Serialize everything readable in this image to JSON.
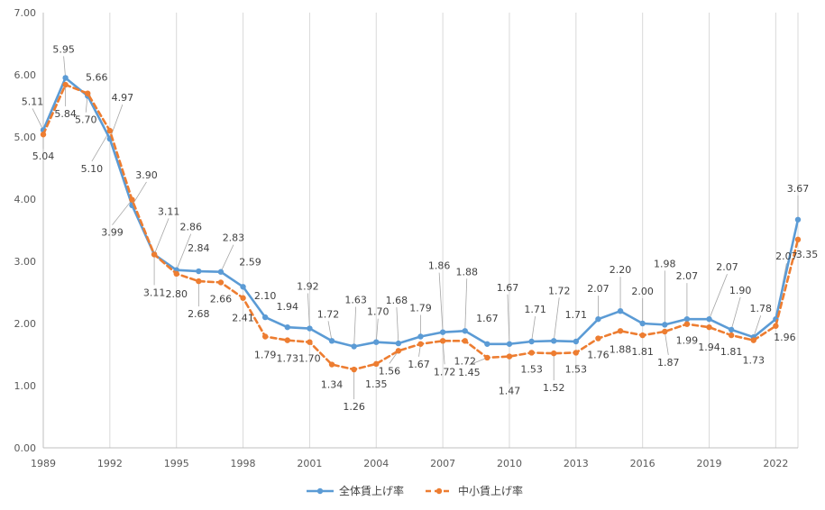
{
  "chart_data": {
    "type": "line",
    "title": "",
    "xlabel": "",
    "ylabel": "",
    "ylim": [
      0,
      7
    ],
    "y_ticks": [
      "0.00",
      "1.00",
      "2.00",
      "3.00",
      "4.00",
      "5.00",
      "6.00",
      "7.00"
    ],
    "x_tick_labels": [
      "1989",
      "1992",
      "1995",
      "1998",
      "2001",
      "2004",
      "2007",
      "2010",
      "2013",
      "2016",
      "2019",
      "2022"
    ],
    "x": [
      1989,
      1990,
      1991,
      1992,
      1993,
      1994,
      1995,
      1996,
      1997,
      1998,
      1999,
      2000,
      2001,
      2002,
      2003,
      2004,
      2005,
      2006,
      2007,
      2008,
      2009,
      2010,
      2011,
      2012,
      2013,
      2014,
      2015,
      2016,
      2017,
      2018,
      2019,
      2020,
      2021,
      2022,
      2023
    ],
    "grid": "vertical",
    "legend_position": "bottom",
    "series": [
      {
        "name": "全体賃上げ率",
        "color": "#5B9BD5",
        "style": "solid",
        "values": [
          5.11,
          5.95,
          5.66,
          4.97,
          3.9,
          3.11,
          2.86,
          2.84,
          2.83,
          2.59,
          2.1,
          1.94,
          1.92,
          1.72,
          1.63,
          1.7,
          1.68,
          1.79,
          1.86,
          1.88,
          1.67,
          1.67,
          1.71,
          1.72,
          1.71,
          2.07,
          2.2,
          2.0,
          1.98,
          2.07,
          2.07,
          1.9,
          1.78,
          2.07,
          3.67
        ],
        "labels": [
          "5.11",
          "5.95",
          "5.66",
          "4.97",
          "3.90",
          "3.11",
          "2.86",
          "2.84",
          "2.83",
          "2.59",
          "2.10",
          "1.94",
          "1.92",
          "1.72",
          "1.63",
          "1.70",
          "1.68",
          "1.79",
          "1.86",
          "1.88",
          "1.67",
          "1.67",
          "1.71",
          "1.72",
          "1.71",
          "2.07",
          "2.20",
          "2.00",
          "1.98",
          "2.07",
          "2.07",
          "1.90",
          "1.78",
          "2.07",
          "3.67"
        ]
      },
      {
        "name": "中小賃上げ率",
        "color": "#ED7D31",
        "style": "dashed",
        "values": [
          5.04,
          5.84,
          5.7,
          5.1,
          3.99,
          3.11,
          2.8,
          2.68,
          2.66,
          2.41,
          1.79,
          1.73,
          1.7,
          1.34,
          1.26,
          1.35,
          1.56,
          1.67,
          1.72,
          1.72,
          1.45,
          1.47,
          1.53,
          1.52,
          1.53,
          1.76,
          1.88,
          1.81,
          1.87,
          1.99,
          1.94,
          1.81,
          1.73,
          1.96,
          3.35
        ],
        "labels": [
          "5.04",
          "5.84",
          "5.70",
          "5.10",
          "3.99",
          "3.11",
          "2.80",
          "2.68",
          "2.66",
          "2.41",
          "1.79",
          "1.73",
          "1.70",
          "1.34",
          "1.26",
          "1.35",
          "1.56",
          "1.67",
          "1.72",
          "1.72",
          "1.45",
          "1.47",
          "1.53",
          "1.52",
          "1.53",
          "1.76",
          "1.88",
          "1.81",
          "1.87",
          "1.99",
          "1.94",
          "1.81",
          "1.73",
          "1.96",
          "3.35"
        ]
      }
    ]
  }
}
